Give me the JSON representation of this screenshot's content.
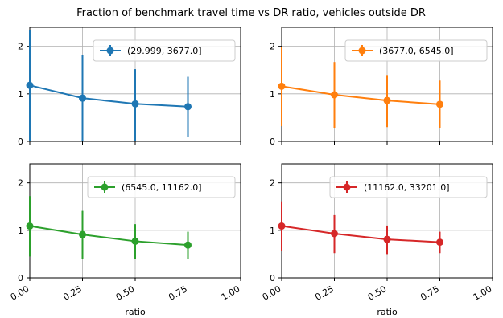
{
  "chart_data": {
    "type": "line",
    "title": "Fraction of benchmark travel time vs DR ratio, vehicles outside DR",
    "xlabel": "ratio",
    "xlim": [
      0.0,
      1.0
    ],
    "ylim": [
      0,
      2.4
    ],
    "xticks": [
      0.0,
      0.25,
      0.5,
      0.75,
      1.0
    ],
    "xtick_labels": [
      "0.00",
      "0.25",
      "0.50",
      "0.75",
      "1.00"
    ],
    "yticks": [
      0,
      1,
      2
    ],
    "ytick_labels": [
      "0",
      "1",
      "2"
    ],
    "grid": true,
    "legend_position": "top-right",
    "panels": [
      {
        "name": "(29.999, 3677.0]",
        "color": "#1f77b4",
        "x": [
          0.0,
          0.25,
          0.5,
          0.75
        ],
        "y": [
          1.18,
          0.91,
          0.79,
          0.73
        ],
        "err_low": [
          0.0,
          0.0,
          0.0,
          0.1
        ],
        "err_high": [
          2.35,
          1.82,
          1.52,
          1.36
        ]
      },
      {
        "name": "(3677.0, 6545.0]",
        "color": "#ff7f0e",
        "x": [
          0.0,
          0.25,
          0.5,
          0.75
        ],
        "y": [
          1.16,
          0.98,
          0.86,
          0.78
        ],
        "err_low": [
          0.32,
          0.27,
          0.3,
          0.28
        ],
        "err_high": [
          1.99,
          1.67,
          1.38,
          1.28
        ]
      },
      {
        "name": "(6545.0, 11162.0]",
        "color": "#2ca02c",
        "x": [
          0.0,
          0.25,
          0.5,
          0.75
        ],
        "y": [
          1.09,
          0.91,
          0.77,
          0.69
        ],
        "err_low": [
          0.45,
          0.39,
          0.4,
          0.4
        ],
        "err_high": [
          1.72,
          1.41,
          1.13,
          0.97
        ]
      },
      {
        "name": "(11162.0, 33201.0]",
        "color": "#d62728",
        "x": [
          0.0,
          0.25,
          0.5,
          0.75
        ],
        "y": [
          1.09,
          0.93,
          0.81,
          0.75
        ],
        "err_low": [
          0.57,
          0.52,
          0.5,
          0.52
        ],
        "err_high": [
          1.61,
          1.32,
          1.1,
          0.97
        ]
      }
    ]
  }
}
